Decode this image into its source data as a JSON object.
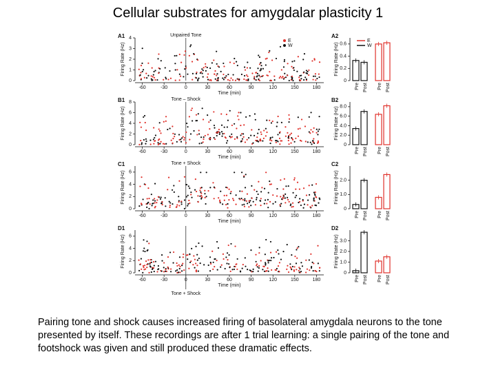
{
  "title": "Cellular substrates for amygdalar plasticity 1",
  "caption": "Pairing tone and shock causes increased firing of basolateral amygdala neurons to the tone presented by itself. These recordings are after 1 trial learning: a single pairing of the tone and footshock was given and still produced these dramatic effects.",
  "figure": {
    "legend": [
      "E",
      "W"
    ],
    "x_label": "Time (min)",
    "y_label": "Firing Rate (Hz)",
    "bar_labels": [
      "Pre",
      "Post"
    ],
    "xticks": [
      -60,
      -30,
      0,
      30,
      60,
      90,
      120,
      150,
      180
    ],
    "xlim": [
      -70,
      190
    ],
    "panels": [
      {
        "label": "A1",
        "annotation": "Unpaired Tone",
        "ylim": [
          0,
          4
        ],
        "yticks": [
          0,
          1,
          2,
          3,
          4
        ],
        "bar_panel": "A2",
        "bar_ylim": [
          0,
          0.7
        ],
        "bar_ticks": [
          0,
          0.2,
          0.4,
          0.6
        ],
        "bars": [
          0.33,
          0.3,
          0.6,
          0.62
        ]
      },
      {
        "label": "B1",
        "annotation": "Tone – Shock",
        "ylim": [
          0,
          8
        ],
        "yticks": [
          0,
          2,
          4,
          6,
          8
        ],
        "bar_panel": "B2",
        "bar_ylim": [
          0,
          9
        ],
        "bar_ticks": [
          0,
          {
            "value": 2,
            "label": "2.0"
          },
          {
            "value": 4,
            "label": "4.0"
          },
          {
            "value": 6,
            "label": "6.0"
          },
          {
            "value": 8,
            "label": "8.0"
          }
        ],
        "bars": [
          3.4,
          7.0,
          6.4,
          8.2
        ]
      },
      {
        "label": "C1",
        "annotation": "Tone + Shock",
        "ylim": [
          0,
          7
        ],
        "yticks": [
          0,
          2,
          4,
          6
        ],
        "bar_panel": "C2",
        "bar_ylim": [
          0,
          3
        ],
        "bar_ticks": [
          0,
          {
            "value": 1,
            "label": "1.0"
          },
          {
            "value": 2,
            "label": "2.0"
          }
        ],
        "bars": [
          0.3,
          2.0,
          0.8,
          2.4
        ]
      },
      {
        "label": "D1",
        "annotation": "Tone + Shock",
        "ylim": [
          0,
          7
        ],
        "yticks": [
          0,
          2,
          4,
          6
        ],
        "bar_panel": "D2",
        "bar_ylim": [
          0,
          4
        ],
        "bar_ticks": [
          0,
          {
            "value": 1,
            "label": "1.0"
          },
          {
            "value": 2,
            "label": "2.0"
          },
          {
            "value": 3,
            "label": "3.0"
          }
        ],
        "bars": [
          0.2,
          3.8,
          1.1,
          1.5
        ]
      }
    ]
  }
}
